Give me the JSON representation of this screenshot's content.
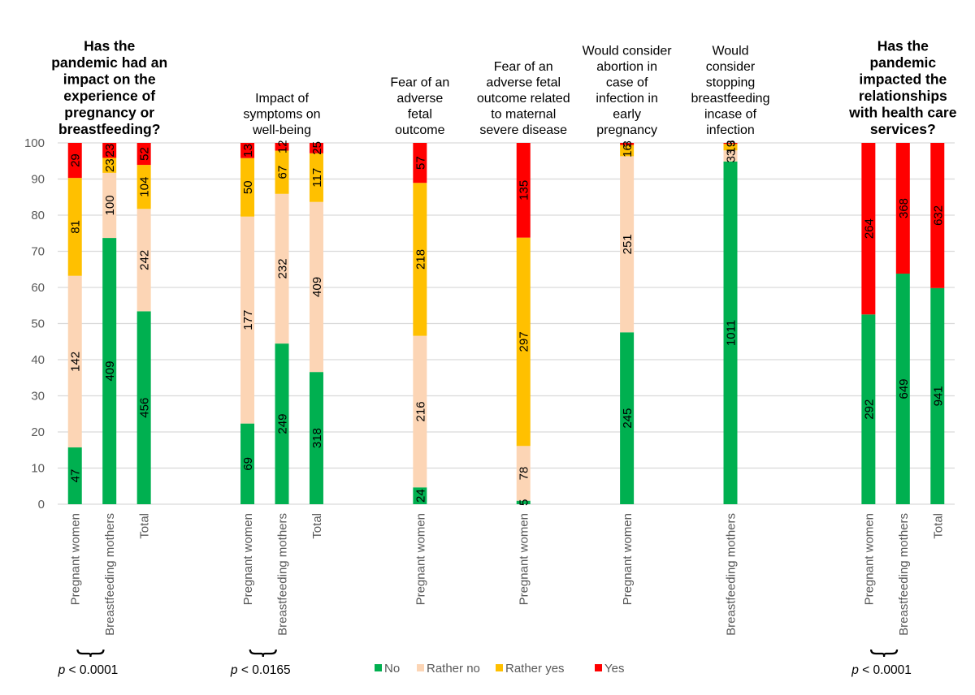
{
  "chart_data": {
    "type": "bar",
    "stacked": true,
    "normalized": true,
    "ylabel": "",
    "xlabel": "",
    "ylim": [
      0,
      100
    ],
    "yticks": [
      0,
      10,
      20,
      30,
      40,
      50,
      60,
      70,
      80,
      90,
      100
    ],
    "grid": true,
    "legend_position": "bottom",
    "series": [
      {
        "name": "No",
        "color": "#00b050"
      },
      {
        "name": "Rather no",
        "color": "#fcd5b5"
      },
      {
        "name": "Rather yes",
        "color": "#ffc000"
      },
      {
        "name": "Yes",
        "color": "#ff0000"
      }
    ],
    "groups": [
      {
        "title": "Has the pandemic had an impact on the experience of pregnancy or breastfeeding?",
        "title_lines": [
          "Has the",
          "pandemic had an",
          "impact on the",
          "experience of",
          "pregnancy or",
          "breastfeeding?"
        ],
        "title_bold": true,
        "start_slot": 0,
        "bars": [
          {
            "category": "Pregnant women",
            "values": [
              47,
              142,
              81,
              29
            ]
          },
          {
            "category": "Breastfeeding mothers",
            "values": [
              409,
              100,
              23,
              23
            ]
          },
          {
            "category": "Total",
            "values": [
              456,
              242,
              104,
              52
            ]
          }
        ],
        "p_value": "p < 0.0001"
      },
      {
        "title": "Impact of symptoms on well-being",
        "title_lines": [
          "Impact of",
          "symptoms on",
          "well-being"
        ],
        "title_bold": false,
        "start_slot": 5,
        "bars": [
          {
            "category": "Pregnant women",
            "values": [
              69,
              177,
              50,
              13
            ]
          },
          {
            "category": "Breastfeeding mothers",
            "values": [
              249,
              232,
              67,
              12
            ]
          },
          {
            "category": "Total",
            "values": [
              318,
              409,
              117,
              25
            ]
          }
        ],
        "p_value": "p < 0.0165"
      },
      {
        "title": "Fear of an adverse fetal outcome",
        "title_lines": [
          "Fear of an",
          "adverse",
          "fetal",
          "outcome"
        ],
        "title_bold": false,
        "start_slot": 10,
        "bars": [
          {
            "category": "Pregnant women",
            "values": [
              24,
              216,
              218,
              57
            ]
          }
        ]
      },
      {
        "title": "Fear of an adverse fetal outcome related to maternal severe disease",
        "title_lines": [
          "Fear of an",
          "adverse fetal",
          "outcome related",
          "to maternal",
          "severe disease"
        ],
        "title_bold": false,
        "start_slot": 13,
        "bars": [
          {
            "category": "Pregnant women",
            "values": [
              5,
              78,
              297,
              135
            ]
          }
        ]
      },
      {
        "title": "Would consider abortion in case of infection in early pregnancy",
        "title_lines": [
          "Would consider",
          "abortion in",
          "case of",
          "infection in",
          "early",
          "pregnancy"
        ],
        "title_bold": false,
        "start_slot": 16,
        "bars": [
          {
            "category": "Pregnant women",
            "values": [
              245,
              251,
              16,
              3
            ]
          }
        ]
      },
      {
        "title": "Would consider stopping breastfeeding incase of infection",
        "title_lines": [
          "Would",
          "consider",
          "stopping",
          "breastfeeding",
          "incase of",
          "infection"
        ],
        "title_bold": false,
        "start_slot": 19,
        "bars": [
          {
            "category": "Breastfeeding mothers",
            "values": [
              1011,
              33,
              19,
              3
            ]
          }
        ]
      },
      {
        "title": "Has the pandemic impacted the relationships with health care services?",
        "title_lines": [
          "Has the",
          "pandemic",
          "impacted the",
          "relationships",
          "with health care",
          "services?"
        ],
        "title_bold": true,
        "start_slot": 23,
        "bars": [
          {
            "category": "Pregnant women",
            "values": [
              292,
              0,
              0,
              264
            ]
          },
          {
            "category": "Breastfeeding mothers",
            "values": [
              649,
              0,
              0,
              368
            ]
          },
          {
            "category": "Total",
            "values": [
              941,
              0,
              0,
              632
            ]
          }
        ],
        "p_value": "p < 0.0001"
      }
    ]
  }
}
